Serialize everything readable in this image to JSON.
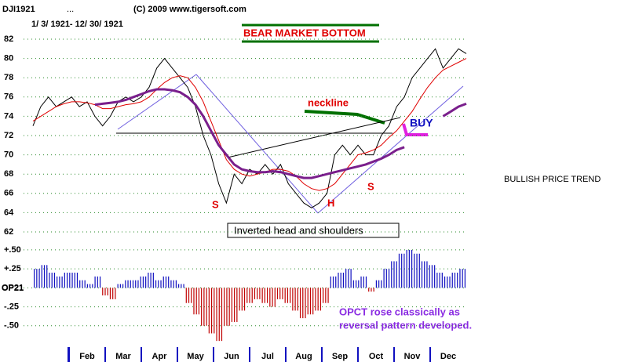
{
  "header": {
    "symbol": "DJI1921",
    "dots": "...",
    "copyright": "(C) 2009 www.tigersoft.com",
    "date_range": "1/ 3/ 1921- 12/ 30/ 1921"
  },
  "annotations": {
    "headline": "BEAR MARKET BOTTOM",
    "neckline": "neckline",
    "buy": "BUY",
    "left_shoulder": "S",
    "head": "H",
    "right_shoulder": "S",
    "pattern": "Inverted head and shoulders",
    "trend": "BULLISH PRICE TREND",
    "note_line1": "OPCT rose classically as",
    "note_line2": "reversal pattern developed."
  },
  "chart_data": [
    {
      "type": "line",
      "ylim": [
        62,
        82
      ],
      "yticks": [
        62,
        64,
        66,
        68,
        70,
        72,
        74,
        76,
        78,
        80,
        82
      ],
      "grid": true,
      "series": [
        {
          "color": "#000000",
          "values": [
            73,
            75,
            76,
            75,
            75.5,
            76,
            75,
            75.5,
            74,
            73,
            74,
            75.5,
            76,
            75.5,
            76,
            77,
            79,
            80,
            79,
            78,
            77,
            75,
            72,
            70,
            67,
            65,
            68,
            67,
            68.5,
            68,
            69,
            68,
            69,
            67,
            66,
            65,
            64.5,
            65,
            66,
            70,
            71,
            70,
            71,
            70,
            70,
            72,
            73,
            75,
            76,
            78,
            79,
            80,
            81,
            79,
            80,
            81,
            80.5
          ]
        },
        {
          "color": "#e00000",
          "values": [
            73.5,
            74,
            74.5,
            75,
            75.3,
            75.5,
            75.5,
            75.4,
            75.2,
            74.8,
            74.8,
            75,
            75.2,
            75.3,
            75.5,
            76,
            76.8,
            77.5,
            78,
            78.2,
            78,
            77,
            75.5,
            73.5,
            71.5,
            69.5,
            68.5,
            68,
            67.8,
            68,
            68.2,
            68.5,
            68.5,
            68.3,
            67.8,
            67,
            66.5,
            66.3,
            66.5,
            67,
            68,
            69,
            70,
            70.2,
            70.5,
            71,
            71.8,
            72.5,
            73.5,
            74.5,
            75.8,
            77,
            78,
            78.8,
            79.2,
            79.6,
            80
          ]
        },
        {
          "color": "#7a1f8c",
          "values": [
            null,
            null,
            null,
            null,
            null,
            null,
            null,
            null,
            75.2,
            75.3,
            75.4,
            75.5,
            75.7,
            76,
            76.3,
            76.6,
            76.8,
            76.8,
            76.7,
            76.5,
            76,
            75.2,
            74,
            72.5,
            71,
            70,
            69,
            68.5,
            68.3,
            68.2,
            68.2,
            68.3,
            68.2,
            68,
            67.8,
            67.6,
            67.6,
            67.8,
            68,
            68.2,
            68.4,
            68.6,
            68.8,
            69,
            69.3,
            69.6,
            70,
            70.5,
            70.8,
            null,
            null,
            null,
            null,
            74,
            74.5,
            75,
            75.3
          ]
        }
      ]
    },
    {
      "type": "bar",
      "name": "OP21",
      "ylim": [
        -0.75,
        0.53
      ],
      "yticks": [
        {
          "value": 0.5,
          "label": "+.50"
        },
        {
          "value": 0.25,
          "label": "+.25"
        },
        {
          "value": 0,
          "label": "OP21"
        },
        {
          "value": -0.25,
          "label": "-.25"
        },
        {
          "value": -0.5,
          "label": "-.50"
        }
      ],
      "positive_color": "#1010c0",
      "negative_color": "#c00000",
      "values": [
        0.25,
        0.3,
        0.2,
        0.15,
        0.2,
        0.2,
        0.1,
        0.05,
        0.15,
        -0.1,
        -0.15,
        0.05,
        0.1,
        0.1,
        0.15,
        0.2,
        0.1,
        0.15,
        0.1,
        0.05,
        -0.2,
        -0.35,
        -0.5,
        -0.6,
        -0.7,
        -0.5,
        -0.45,
        -0.3,
        -0.2,
        -0.15,
        -0.2,
        -0.25,
        -0.15,
        -0.2,
        -0.3,
        -0.4,
        -0.35,
        -0.3,
        -0.2,
        0.15,
        0.2,
        0.25,
        0.1,
        0.15,
        -0.05,
        0.1,
        0.25,
        0.35,
        0.45,
        0.5,
        0.45,
        0.35,
        0.3,
        0.2,
        0.15,
        0.2,
        0.25
      ],
      "months": [
        "Feb",
        "Mar",
        "Apr",
        "May",
        "Jun",
        "Jul",
        "Aug",
        "Sep",
        "Oct",
        "Nov",
        "Dec"
      ]
    }
  ]
}
